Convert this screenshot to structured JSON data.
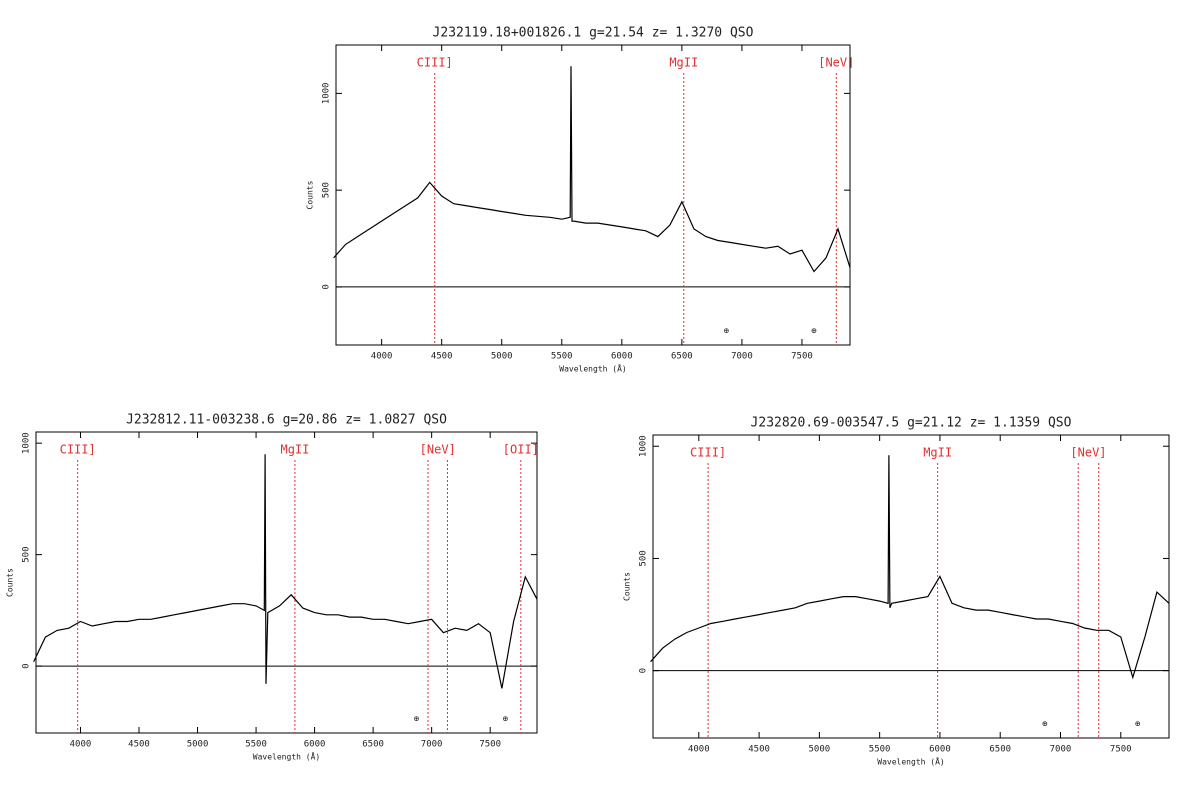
{
  "chart_data": [
    {
      "type": "line",
      "title": "J232119.18+001826.1  g=21.54  z= 1.3270  QSO",
      "x_label": "Wavelength (Å)",
      "y_label": "Counts",
      "x": [
        3600,
        3700,
        3800,
        3900,
        4000,
        4100,
        4200,
        4300,
        4400,
        4500,
        4600,
        4700,
        4800,
        4900,
        5000,
        5100,
        5200,
        5300,
        5400,
        5500,
        5570,
        5577,
        5585,
        5600,
        5700,
        5800,
        5900,
        6000,
        6100,
        6200,
        6300,
        6400,
        6500,
        6600,
        6700,
        6800,
        6900,
        7000,
        7100,
        7200,
        7300,
        7400,
        7500,
        7600,
        7700,
        7800,
        7900
      ],
      "series": [
        {
          "color": "#000000",
          "values": [
            150,
            220,
            260,
            300,
            340,
            380,
            420,
            460,
            540,
            470,
            430,
            420,
            410,
            400,
            390,
            380,
            370,
            365,
            360,
            350,
            360,
            1140,
            340,
            340,
            330,
            330,
            320,
            310,
            300,
            290,
            260,
            320,
            440,
            300,
            260,
            240,
            230,
            220,
            210,
            200,
            210,
            170,
            190,
            80,
            150,
            300,
            100
          ]
        }
      ],
      "xlim": [
        3620,
        7900
      ],
      "ylim": [
        -300,
        1250
      ],
      "xticks": [
        4000,
        4500,
        5000,
        5500,
        6000,
        6500,
        7000,
        7500
      ],
      "yticks": [
        0,
        500,
        1000
      ],
      "hline": 0,
      "lines": [
        {
          "label": "CIII]",
          "x": [
            4442
          ]
        },
        {
          "label": "MgII",
          "x": [
            6516
          ]
        },
        {
          "label": "[NeV]",
          "x": [
            7786
          ]
        }
      ],
      "line_color": "#e03030",
      "telluric": {
        "label": "⊕",
        "x": [
          6870,
          7600
        ]
      }
    },
    {
      "type": "line",
      "title": "J232812.11-003238.6  g=20.86  z= 1.0827  QSO",
      "x_label": "Wavelength (Å)",
      "y_label": "Counts",
      "x": [
        3600,
        3700,
        3800,
        3900,
        4000,
        4100,
        4200,
        4300,
        4400,
        4500,
        4600,
        4700,
        4800,
        4900,
        5000,
        5100,
        5200,
        5300,
        5400,
        5500,
        5570,
        5577,
        5585,
        5600,
        5700,
        5800,
        5900,
        6000,
        6100,
        6200,
        6300,
        6400,
        6500,
        6600,
        6700,
        6800,
        6900,
        7000,
        7100,
        7200,
        7300,
        7400,
        7500,
        7600,
        7700,
        7800,
        7900
      ],
      "series": [
        {
          "color": "#000000",
          "values": [
            20,
            130,
            160,
            170,
            200,
            180,
            190,
            200,
            200,
            210,
            210,
            220,
            230,
            240,
            250,
            260,
            270,
            280,
            280,
            270,
            250,
            950,
            -80,
            240,
            270,
            320,
            260,
            240,
            230,
            230,
            220,
            220,
            210,
            210,
            200,
            190,
            200,
            210,
            150,
            170,
            160,
            190,
            150,
            -100,
            200,
            400,
            300
          ]
        }
      ],
      "xlim": [
        3620,
        7900
      ],
      "ylim": [
        -300,
        1050
      ],
      "xticks": [
        4000,
        4500,
        5000,
        5500,
        6000,
        6500,
        7000,
        7500
      ],
      "yticks": [
        0,
        500,
        1000
      ],
      "hline": 0,
      "lines": [
        {
          "label": "CIII]",
          "x": [
            3976
          ]
        },
        {
          "label": "MgII",
          "x": [
            5832
          ]
        },
        {
          "label": "[NeV]",
          "x": [
            6969,
            7135
          ]
        },
        {
          "label": "[OII]",
          "x": [
            7762
          ]
        }
      ],
      "line_color": "#e03030",
      "telluric": {
        "label": "⊕",
        "x": [
          6870,
          7630
        ]
      }
    },
    {
      "type": "line",
      "title": "J232820.69-003547.5  g=21.12  z= 1.1359  QSO",
      "x_label": "Wavelength (Å)",
      "y_label": "Counts",
      "x": [
        3600,
        3700,
        3800,
        3900,
        4000,
        4100,
        4200,
        4300,
        4400,
        4500,
        4600,
        4700,
        4800,
        4900,
        5000,
        5100,
        5200,
        5300,
        5400,
        5500,
        5570,
        5577,
        5585,
        5600,
        5700,
        5800,
        5900,
        6000,
        6100,
        6200,
        6300,
        6400,
        6500,
        6600,
        6700,
        6800,
        6900,
        7000,
        7100,
        7200,
        7300,
        7400,
        7500,
        7600,
        7700,
        7800,
        7900
      ],
      "series": [
        {
          "color": "#000000",
          "values": [
            40,
            100,
            140,
            170,
            190,
            210,
            220,
            230,
            240,
            250,
            260,
            270,
            280,
            300,
            310,
            320,
            330,
            330,
            320,
            310,
            300,
            960,
            280,
            300,
            310,
            320,
            330,
            420,
            300,
            280,
            270,
            270,
            260,
            250,
            240,
            230,
            230,
            220,
            210,
            190,
            180,
            180,
            150,
            -30,
            150,
            350,
            300
          ]
        }
      ],
      "xlim": [
        3620,
        7900
      ],
      "ylim": [
        -300,
        1050
      ],
      "xticks": [
        4000,
        4500,
        5000,
        5500,
        6000,
        6500,
        7000,
        7500
      ],
      "yticks": [
        0,
        500,
        1000
      ],
      "hline": 0,
      "lines": [
        {
          "label": "CIII]",
          "x": [
            4077
          ]
        },
        {
          "label": "MgII",
          "x": [
            5981
          ]
        },
        {
          "label": "[NeV]",
          "x": [
            7147,
            7317
          ]
        }
      ],
      "line_color": "#e03030",
      "telluric": {
        "label": "⊕",
        "x": [
          6870,
          7640
        ]
      }
    }
  ]
}
